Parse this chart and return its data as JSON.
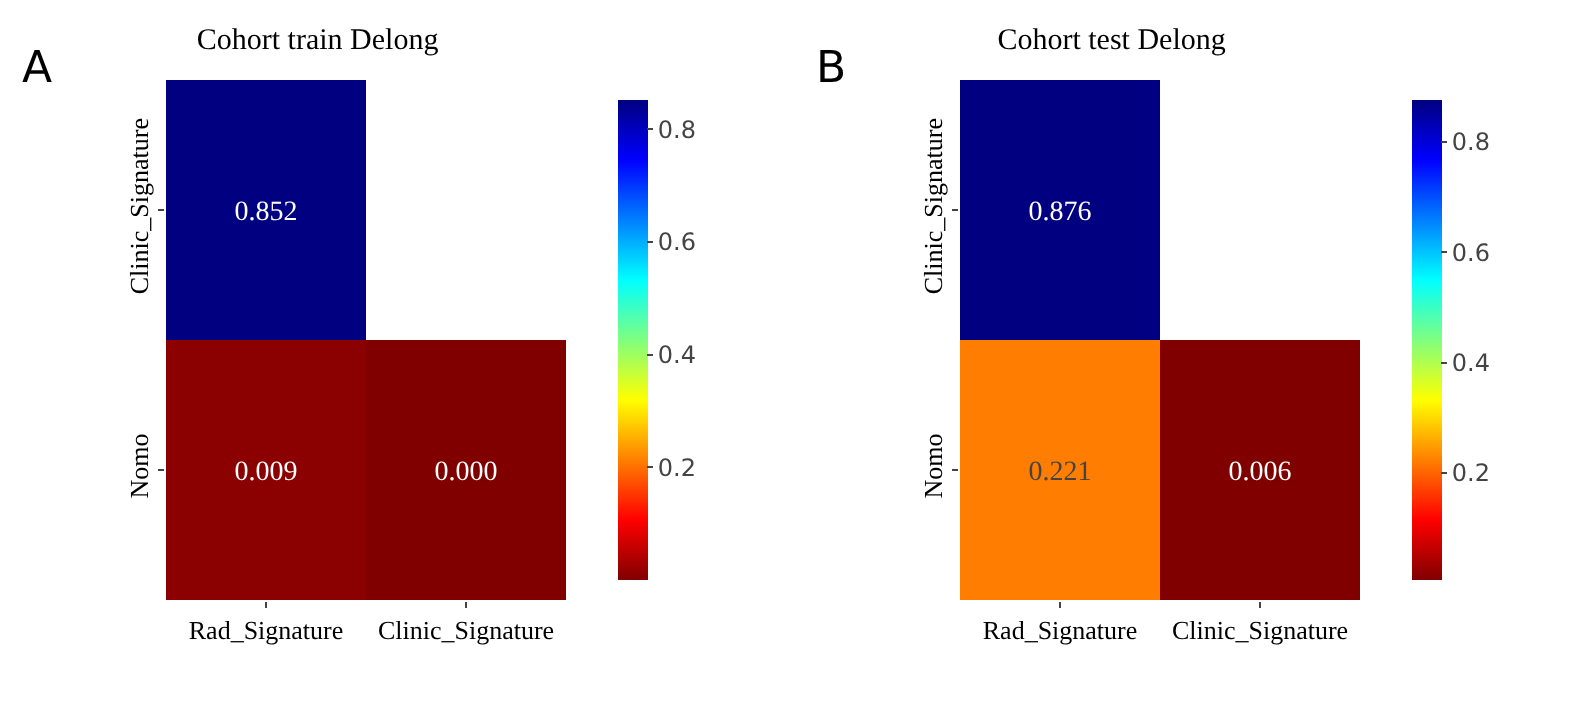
{
  "chart_data": [
    {
      "type": "heatmap",
      "title": "Cohort train Delong",
      "annotations": [
        "A"
      ],
      "categories": [
        "Rad_Signature",
        "Clinic_Signature"
      ],
      "y_categories": [
        "Clinic_Signature",
        "Nomo"
      ],
      "cells": [
        [
          0.852,
          null
        ],
        [
          0.009,
          0.0
        ]
      ],
      "cell_labels": [
        [
          "0.852",
          null
        ],
        [
          "0.009",
          "0.000"
        ]
      ],
      "clim": [
        0.0,
        0.852
      ],
      "cticks": [
        0.2,
        0.4,
        0.6,
        0.8
      ]
    },
    {
      "type": "heatmap",
      "title": "Cohort test Delong",
      "annotations": [
        "B"
      ],
      "categories": [
        "Rad_Signature",
        "Clinic_Signature"
      ],
      "y_categories": [
        "Clinic_Signature",
        "Nomo"
      ],
      "cells": [
        [
          0.876,
          null
        ],
        [
          0.221,
          0.006
        ]
      ],
      "cell_labels": [
        [
          "0.876",
          null
        ],
        [
          "0.221",
          "0.006"
        ]
      ],
      "clim": [
        0.006,
        0.876
      ],
      "cticks": [
        0.2,
        0.4,
        0.6,
        0.8
      ]
    }
  ]
}
